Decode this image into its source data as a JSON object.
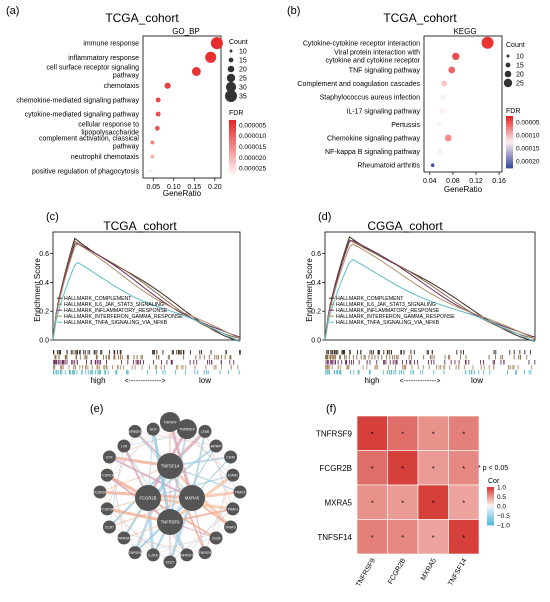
{
  "panels": {
    "a": {
      "letter": "(a)",
      "title": "TCGA_cohort",
      "subtitle": "GO_BP",
      "xlabel": "GeneRatio",
      "count_title": "Count",
      "fdr_title": "FDR",
      "terms": [
        {
          "label": "immune response",
          "x": 0.205,
          "count": 35,
          "fdr": 5e-07
        },
        {
          "label": "inflammatory response",
          "x": 0.19,
          "count": 32,
          "fdr": 1e-06
        },
        {
          "label": "cell surface receptor signaling pathway",
          "x": 0.155,
          "count": 25,
          "fdr": 1.5e-06
        },
        {
          "label": "chemotaxis",
          "x": 0.085,
          "count": 16,
          "fdr": 3e-06
        },
        {
          "label": "chemokine-mediated signaling pathway",
          "x": 0.062,
          "count": 12,
          "fdr": 4e-06
        },
        {
          "label": "cytokine-mediated signaling pathway",
          "x": 0.062,
          "count": 12,
          "fdr": 5e-06
        },
        {
          "label": "cellular response to lipopolysaccharide",
          "x": 0.06,
          "count": 12,
          "fdr": 6e-06
        },
        {
          "label": "complement activation, classical pathway",
          "x": 0.048,
          "count": 9,
          "fdr": 1.2e-05
        },
        {
          "label": "neutrophil chemotaxis",
          "x": 0.048,
          "count": 9,
          "fdr": 1.8e-05
        },
        {
          "label": "positive regulation of phagocytosis",
          "x": 0.042,
          "count": 7,
          "fdr": 2.6e-05
        }
      ],
      "xticks": [
        "0.05",
        "0.10",
        "0.15",
        "0.20"
      ],
      "count_legend": [
        "10",
        "15",
        "20",
        "25",
        "30",
        "35"
      ],
      "fdr_ticks": [
        "0.000005",
        "0.000010",
        "0.000015",
        "0.000020",
        "0.000025"
      ]
    },
    "b": {
      "letter": "(b)",
      "title": "TCGA_cohort",
      "subtitle": "KEGG",
      "xlabel": "GeneRatio",
      "count_title": "Count",
      "fdr_title": "FDR",
      "terms": [
        {
          "label": "Cytokine-cytokine receptor interaction",
          "x": 0.14,
          "count": 30,
          "fdr": 5e-07
        },
        {
          "label": "Viral protein interaction with cytokine and cytokine receptor",
          "x": 0.085,
          "count": 18,
          "fdr": 2e-06
        },
        {
          "label": "TNF signaling pathway",
          "x": 0.078,
          "count": 16,
          "fdr": 3e-06
        },
        {
          "label": "Complement and coagulation cascades",
          "x": 0.065,
          "count": 14,
          "fdr": 8e-06
        },
        {
          "label": "Staphylococcus aureus infection",
          "x": 0.063,
          "count": 12,
          "fdr": 1e-05
        },
        {
          "label": "IL-17 signaling pathway",
          "x": 0.062,
          "count": 12,
          "fdr": 1.2e-05
        },
        {
          "label": "Pertussis",
          "x": 0.056,
          "count": 10,
          "fdr": 1.5e-05
        },
        {
          "label": "Chemokine signaling pathway",
          "x": 0.072,
          "count": 16,
          "fdr": 5e-06
        },
        {
          "label": "NF-kappa B signaling pathway",
          "x": 0.058,
          "count": 12,
          "fdr": 1.4e-05
        },
        {
          "label": "Rheumatoid arthritis",
          "x": 0.045,
          "count": 8,
          "fdr": 0.00022
        }
      ],
      "xticks": [
        "0.04",
        "0.08",
        "0.12",
        "0.16"
      ],
      "count_legend": [
        "10",
        "15",
        "20",
        "25"
      ],
      "fdr_ticks": [
        "0.00005",
        "0.00010",
        "0.00015",
        "0.00020"
      ]
    },
    "c": {
      "letter": "(c)",
      "title": "TCGA_cohort",
      "ylabel": "Enrichment Score",
      "yticks": [
        "0.6",
        "0.4",
        "0.2",
        "0.0"
      ],
      "high": "high",
      "arrow": "<-------------->",
      "low": "low"
    },
    "d": {
      "letter": "(d)",
      "title": "CGGA_cohort",
      "ylabel": "Enrichment Score",
      "yticks": [
        "0.6",
        "0.4",
        "0.2",
        "0.0"
      ],
      "high": "high",
      "arrow": "<-------------->",
      "low": "low"
    },
    "e": {
      "letter": "(e)",
      "center_nodes": [
        "TNFSF14",
        "FCGR2B",
        "MXRA5",
        "TNFRSF9"
      ],
      "outer_nodes": [
        "TNFSF9",
        "TNFRSF4",
        "LTBR",
        "MPRIP",
        "CD40",
        "ICAM1",
        "TRAF2",
        "TRAF1",
        "TRAF3",
        "CD28",
        "TNFSF4",
        "TNFRSF18",
        "CD27",
        "IL2RA",
        "TNFSF8",
        "TNFRSF8",
        "CCR7",
        "FCGR3A",
        "FCGR2A",
        "FCGR1A",
        "SYK",
        "LYN",
        "TNFRSF1B",
        "HCK"
      ]
    },
    "f": {
      "letter": "(f)",
      "genes": [
        "TNFRSF9",
        "FCGR2B",
        "MXRA5",
        "TNFSF14"
      ],
      "matrix": [
        [
          1.0,
          0.75,
          0.55,
          0.65
        ],
        [
          0.75,
          1.0,
          0.5,
          0.6
        ],
        [
          0.55,
          0.5,
          1.0,
          0.45
        ],
        [
          0.65,
          0.6,
          0.45,
          1.0
        ]
      ],
      "legend_note": "* p < 0.05",
      "legend_title": "Cor",
      "legend_ticks": [
        "1.0",
        "0.5",
        "0.0",
        "−0.5",
        "−1.0"
      ],
      "star": "*"
    }
  },
  "chart_data": [
    {
      "type": "scatter",
      "panel": "a",
      "title": "TCGA_cohort",
      "subtitle": "GO_BP",
      "xlabel": "GeneRatio",
      "categories": [
        "immune response",
        "inflammatory response",
        "cell surface receptor signaling pathway",
        "chemotaxis",
        "chemokine-mediated signaling pathway",
        "cytokine-mediated signaling pathway",
        "cellular response to lipopolysaccharide",
        "complement activation, classical pathway",
        "neutrophil chemotaxis",
        "positive regulation of phagocytosis"
      ],
      "x": [
        0.205,
        0.19,
        0.155,
        0.085,
        0.062,
        0.062,
        0.06,
        0.048,
        0.048,
        0.042
      ],
      "xlim": [
        0.02,
        0.22
      ]
    },
    {
      "type": "scatter",
      "panel": "b",
      "title": "TCGA_cohort",
      "subtitle": "KEGG",
      "xlabel": "GeneRatio",
      "categories": [
        "Cytokine-cytokine receptor interaction",
        "Viral protein interaction with cytokine and cytokine receptor",
        "TNF signaling pathway",
        "Complement and coagulation cascades",
        "Staphylococcus aureus infection",
        "IL-17 signaling pathway",
        "Pertussis",
        "Chemokine signaling pathway",
        "NF-kappa B signaling pathway",
        "Rheumatoid arthritis"
      ],
      "x": [
        0.14,
        0.085,
        0.078,
        0.065,
        0.063,
        0.062,
        0.056,
        0.072,
        0.058,
        0.045
      ],
      "xlim": [
        0.03,
        0.165
      ]
    },
    {
      "type": "line",
      "panel": "c",
      "title": "TCGA_cohort",
      "ylabel": "Enrichment Score",
      "ylim": [
        0,
        0.75
      ],
      "series": [
        {
          "name": "HALLMARK_COMPLEMENT",
          "color": "#3b2a1e",
          "peak": 0.72
        },
        {
          "name": "HALLMARK_IL6_JAK_STAT3_SIGNALING",
          "color": "#8d6e4a",
          "peak": 0.7
        },
        {
          "name": "HALLMARK_INFLAMMATORY_RESPONSE",
          "color": "#6b2d5c",
          "peak": 0.68
        },
        {
          "name": "HALLMARK_INTERFERON_GAMMA_RESPONSE",
          "color": "#b08f6a",
          "peak": 0.66
        },
        {
          "name": "HALLMARK_TNFA_SIGNALING_VIA_NFKB",
          "color": "#5fbcc9",
          "peak": 0.53
        }
      ]
    },
    {
      "type": "line",
      "panel": "d",
      "title": "CGGA_cohort",
      "ylabel": "Enrichment Score",
      "ylim": [
        0,
        0.75
      ],
      "series": [
        {
          "name": "HALLMARK_COMPLEMENT",
          "color": "#3b2a1e",
          "peak": 0.73
        },
        {
          "name": "HALLMARK_IL6_JAK_STAT3_SIGNALING",
          "color": "#8d6e4a",
          "peak": 0.71
        },
        {
          "name": "HALLMARK_INFLAMMATORY_RESPONSE",
          "color": "#6b2d5c",
          "peak": 0.7
        },
        {
          "name": "HALLMARK_INTERFERON_GAMMA_RESPONSE",
          "color": "#b08f6a",
          "peak": 0.66
        },
        {
          "name": "HALLMARK_TNFA_SIGNALING_VIA_NFKB",
          "color": "#5fbcc9",
          "peak": 0.55
        }
      ]
    },
    {
      "type": "heatmap",
      "panel": "f",
      "categories": [
        "TNFRSF9",
        "FCGR2B",
        "MXRA5",
        "TNFSF14"
      ],
      "values": [
        [
          1.0,
          0.75,
          0.55,
          0.65
        ],
        [
          0.75,
          1.0,
          0.5,
          0.6
        ],
        [
          0.55,
          0.5,
          1.0,
          0.45
        ],
        [
          0.65,
          0.6,
          0.45,
          1.0
        ]
      ],
      "legend_title": "Cor",
      "range": [
        -1,
        1
      ]
    }
  ]
}
